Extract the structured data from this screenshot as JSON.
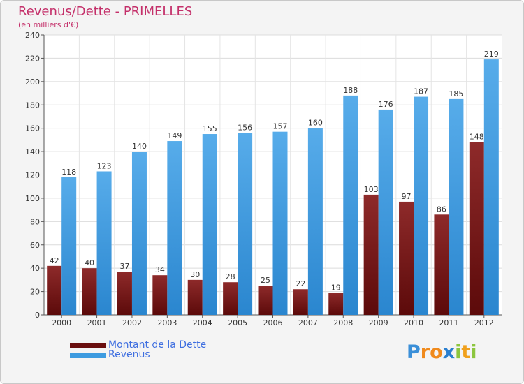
{
  "chart_data": {
    "type": "bar",
    "title": "Revenus/Dette - PRIMELLES",
    "subtitle": "(en milliers d'€)",
    "categories": [
      "2000",
      "2001",
      "2002",
      "2003",
      "2004",
      "2005",
      "2006",
      "2007",
      "2008",
      "2009",
      "2010",
      "2011",
      "2012"
    ],
    "series": [
      {
        "name": "Montant de la Dette",
        "color": "#7a1a1a",
        "values": [
          42,
          40,
          37,
          34,
          30,
          28,
          25,
          22,
          19,
          103,
          97,
          86,
          148
        ]
      },
      {
        "name": "Revenus",
        "color": "#3d9be0",
        "values": [
          118,
          123,
          140,
          149,
          155,
          156,
          157,
          160,
          188,
          176,
          187,
          185,
          219
        ]
      }
    ],
    "ylim": [
      0,
      240
    ],
    "yticks": [
      0,
      20,
      40,
      60,
      80,
      100,
      120,
      140,
      160,
      180,
      200,
      220,
      240
    ],
    "grid": true,
    "legend_position": "bottom-left"
  },
  "logo": {
    "letters": [
      {
        "ch": "P",
        "color": "#3a8fd8"
      },
      {
        "ch": "r",
        "color": "#f08a1c"
      },
      {
        "ch": "o",
        "color": "#f08a1c"
      },
      {
        "ch": "x",
        "color": "#2a7fd0"
      },
      {
        "ch": "i",
        "color": "#8cc63e"
      },
      {
        "ch": "t",
        "color": "#f0a01c"
      },
      {
        "ch": "i",
        "color": "#8cc63e"
      }
    ]
  }
}
